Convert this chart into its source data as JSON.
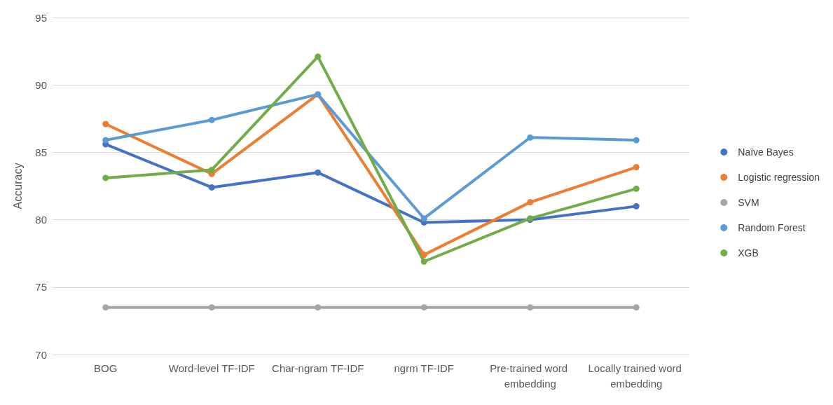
{
  "chart_data": {
    "type": "line",
    "ylabel": "Accuracy",
    "categories": [
      "BOG",
      "Word-level TF-IDF",
      "Char-ngram TF-IDF",
      "ngrm TF-IDF",
      "Pre-trained word embedding",
      "Locally trained word embedding"
    ],
    "series": [
      {
        "name": "Naïve Bayes",
        "color": "#4472c4",
        "values": [
          85.6,
          82.4,
          83.5,
          79.8,
          80.0,
          81.0
        ]
      },
      {
        "name": "Logistic regression",
        "color": "#ed7d31",
        "values": [
          87.1,
          83.4,
          89.3,
          77.4,
          81.3,
          83.9
        ]
      },
      {
        "name": "SVM",
        "color": "#a5a5a5",
        "values": [
          73.5,
          73.5,
          73.5,
          73.5,
          73.5,
          73.5
        ]
      },
      {
        "name": "Random Forest",
        "color": "#5b9bd5",
        "values": [
          85.9,
          87.4,
          89.3,
          80.1,
          86.1,
          85.9
        ]
      },
      {
        "name": "XGB",
        "color": "#70ad47",
        "values": [
          83.1,
          83.7,
          92.1,
          76.9,
          80.1,
          82.3
        ]
      }
    ],
    "ylim": [
      70,
      95
    ],
    "yticks": [
      70,
      75,
      80,
      85,
      90,
      95
    ],
    "grid": "y",
    "legend": "right",
    "marker": "circle",
    "line_style": "solid"
  }
}
